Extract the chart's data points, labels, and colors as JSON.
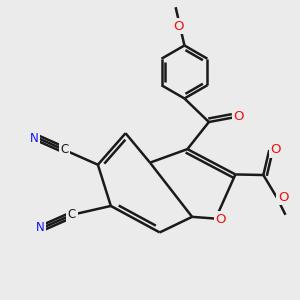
{
  "bg_color": "#ebebeb",
  "bond_color": "#1a1a1a",
  "bond_width": 1.8,
  "atom_colors": {
    "N": "#1010ff",
    "O": "#ee1010",
    "C": "#1a1a1a"
  },
  "xlim": [
    0,
    10
  ],
  "ylim": [
    0,
    10
  ]
}
